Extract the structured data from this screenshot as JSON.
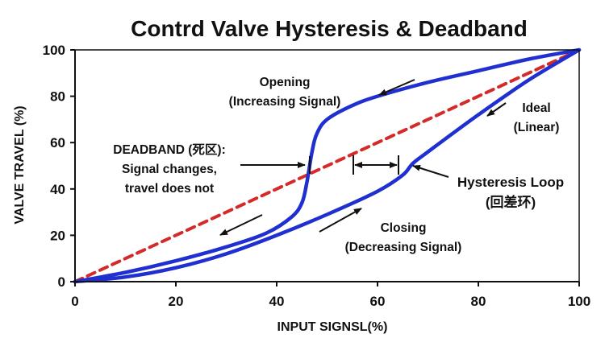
{
  "chart_data": {
    "type": "line",
    "title": "Contrd Valve Hysteresis & Deadband",
    "xlabel": "INPUT SIGNSL(%)",
    "ylabel": "VALVE TRAVEL (%)",
    "xlim": [
      0,
      100
    ],
    "ylim": [
      0,
      100
    ],
    "x_ticks": [
      "0",
      "20",
      "40",
      "60",
      "80",
      "100"
    ],
    "y_ticks": [
      "0",
      "20",
      "40",
      "60",
      "80",
      "100"
    ],
    "grid": false,
    "series": [
      {
        "name": "Ideal (Linear)",
        "style": "dashed",
        "color": "#d42a2a",
        "x": [
          0,
          100
        ],
        "y": [
          0,
          100
        ]
      },
      {
        "name": "Opening (Increasing Signal)",
        "style": "solid",
        "color": "#1f2fd0",
        "x": [
          0,
          10,
          20,
          30,
          38,
          43,
          45,
          46,
          47,
          48,
          50,
          55,
          60,
          70,
          80,
          90,
          100
        ],
        "y": [
          0,
          4,
          9,
          15,
          21,
          28,
          34,
          43,
          56,
          64,
          70,
          76,
          80,
          86,
          91,
          96,
          100
        ]
      },
      {
        "name": "Closing (Decreasing Signal)",
        "style": "solid",
        "color": "#1f2fd0",
        "x": [
          0,
          10,
          20,
          30,
          40,
          50,
          60,
          65,
          67,
          70,
          80,
          90,
          100
        ],
        "y": [
          0,
          2,
          6,
          12,
          20,
          29,
          39,
          46,
          51,
          56,
          72,
          87,
          100
        ]
      }
    ],
    "annotations": {
      "opening": [
        "Opening",
        "(Increasing Signal)"
      ],
      "closing": [
        "Closing",
        "(Decreasing Signal)"
      ],
      "ideal": [
        "Ideal",
        "(Linear)"
      ],
      "deadband": [
        "DEADBAND (死区):",
        "Signal changes,",
        "travel does not"
      ],
      "hysteresis": [
        "Hysteresis Loop",
        "(回差环)"
      ]
    }
  }
}
